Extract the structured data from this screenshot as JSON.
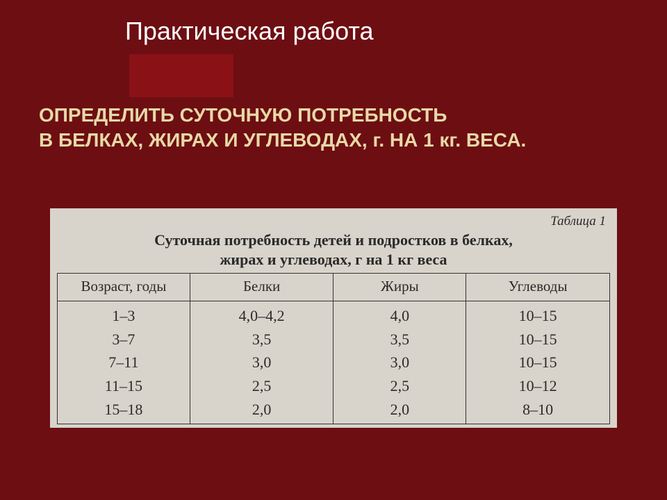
{
  "colors": {
    "slide_bg": "#6d0e13",
    "accent_bg": "#8a1216",
    "title_color": "#ffffff",
    "subtitle_color": "#e8d9a6",
    "paper_bg": "#d8d4cb",
    "table_border": "#333333",
    "table_text": "#2a2a2a"
  },
  "header": {
    "title": "Практическая работа"
  },
  "subtitle": {
    "line1": "ОПРЕДЕЛИТЬ  СУТОЧНУЮ ПОТРЕБНОСТЬ",
    "line2": "В БЕЛКАХ, ЖИРАХ И УГЛЕВОДАХ, г.  НА  1 кг.  ВЕСА."
  },
  "table": {
    "number_label": "Таблица 1",
    "caption_line1": "Суточная потребность детей и подростков в белках,",
    "caption_line2": "жирах и углеводах, г на 1 кг веса",
    "columns": {
      "age": "Возраст, годы",
      "protein": "Белки",
      "fat": "Жиры",
      "carb": "Углеводы"
    },
    "rows": [
      {
        "age": "1–3",
        "protein": "4,0–4,2",
        "fat": "4,0",
        "carb": "10–15"
      },
      {
        "age": "3–7",
        "protein": "3,5",
        "fat": "3,5",
        "carb": "10–15"
      },
      {
        "age": "7–11",
        "protein": "3,0",
        "fat": "3,0",
        "carb": "10–15"
      },
      {
        "age": "11–15",
        "protein": "2,5",
        "fat": "2,5",
        "carb": "10–12"
      },
      {
        "age": "15–18",
        "protein": "2,0",
        "fat": "2,0",
        "carb": "8–10"
      }
    ],
    "header_fontsize_pt": 16,
    "cell_fontsize_pt": 16
  }
}
